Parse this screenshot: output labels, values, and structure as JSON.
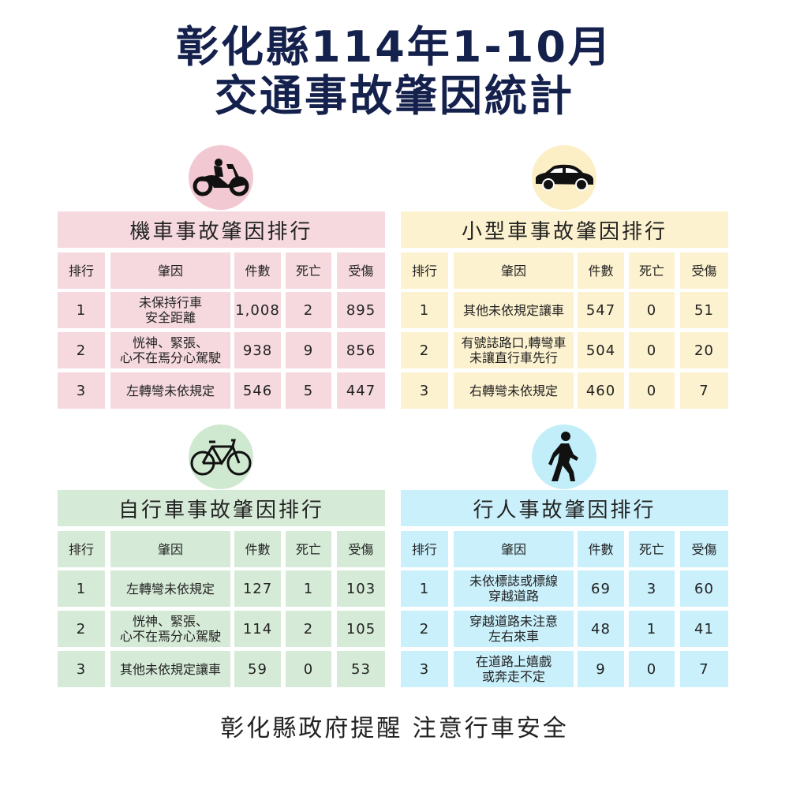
{
  "title": {
    "line1": "彰化縣114年1-10月",
    "line2": "交通事故肇因統計"
  },
  "columns": [
    "排行",
    "肇因",
    "件數",
    "死亡",
    "受傷"
  ],
  "panels": [
    {
      "id": "motorcycle",
      "icon": "motorcycle-icon",
      "title": "機車事故肇因排行",
      "color": "#f5d9df",
      "circle_color": "#f2c9d2",
      "rows": [
        {
          "rank": "1",
          "cause": "未保持行車\n安全距離",
          "count": "1,008",
          "deaths": "2",
          "injuries": "895"
        },
        {
          "rank": "2",
          "cause": "恍神、緊張、\n心不在焉分心駕駛",
          "count": "938",
          "deaths": "9",
          "injuries": "856"
        },
        {
          "rank": "3",
          "cause": "左轉彎未依規定",
          "count": "546",
          "deaths": "5",
          "injuries": "447"
        }
      ]
    },
    {
      "id": "car",
      "icon": "car-icon",
      "title": "小型車事故肇因排行",
      "color": "#fdf2cf",
      "circle_color": "#fcefc6",
      "rows": [
        {
          "rank": "1",
          "cause": "其他未依規定讓車",
          "count": "547",
          "deaths": "0",
          "injuries": "51"
        },
        {
          "rank": "2",
          "cause": "有號誌路口,轉彎車\n未讓直行車先行",
          "count": "504",
          "deaths": "0",
          "injuries": "20"
        },
        {
          "rank": "3",
          "cause": "右轉彎未依規定",
          "count": "460",
          "deaths": "0",
          "injuries": "7"
        }
      ]
    },
    {
      "id": "bicycle",
      "icon": "bicycle-icon",
      "title": "自行車事故肇因排行",
      "color": "#d6ebd7",
      "circle_color": "#cfe8d0",
      "rows": [
        {
          "rank": "1",
          "cause": "左轉彎未依規定",
          "count": "127",
          "deaths": "1",
          "injuries": "103"
        },
        {
          "rank": "2",
          "cause": "恍神、緊張、\n心不在焉分心駕駛",
          "count": "114",
          "deaths": "2",
          "injuries": "105"
        },
        {
          "rank": "3",
          "cause": "其他未依規定讓車",
          "count": "59",
          "deaths": "0",
          "injuries": "53"
        }
      ]
    },
    {
      "id": "pedestrian",
      "icon": "pedestrian-icon",
      "title": "行人事故肇因排行",
      "color": "#c9f0fb",
      "circle_color": "#c2eefa",
      "rows": [
        {
          "rank": "1",
          "cause": "未依標誌或標線\n穿越道路",
          "count": "69",
          "deaths": "3",
          "injuries": "60"
        },
        {
          "rank": "2",
          "cause": "穿越道路未注意\n左右來車",
          "count": "48",
          "deaths": "1",
          "injuries": "41"
        },
        {
          "rank": "3",
          "cause": "在道路上嬉戲\n或奔走不定",
          "count": "9",
          "deaths": "0",
          "injuries": "7"
        }
      ]
    }
  ],
  "footer": "彰化縣政府提醒 注意行車安全",
  "colors": {
    "title": "#15214d"
  }
}
